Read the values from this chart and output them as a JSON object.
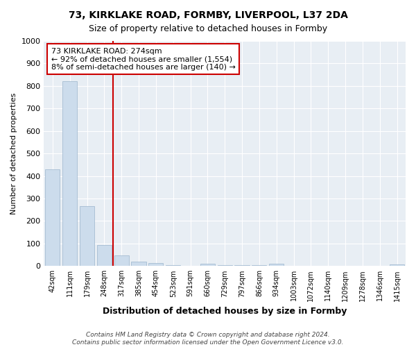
{
  "title": "73, KIRKLAKE ROAD, FORMBY, LIVERPOOL, L37 2DA",
  "subtitle": "Size of property relative to detached houses in Formby",
  "xlabel": "Distribution of detached houses by size in Formby",
  "ylabel": "Number of detached properties",
  "footer_line1": "Contains HM Land Registry data © Crown copyright and database right 2024.",
  "footer_line2": "Contains public sector information licensed under the Open Government Licence v3.0.",
  "categories": [
    "42sqm",
    "111sqm",
    "179sqm",
    "248sqm",
    "317sqm",
    "385sqm",
    "454sqm",
    "523sqm",
    "591sqm",
    "660sqm",
    "729sqm",
    "797sqm",
    "866sqm",
    "934sqm",
    "1003sqm",
    "1072sqm",
    "1140sqm",
    "1209sqm",
    "1278sqm",
    "1346sqm",
    "1415sqm"
  ],
  "values": [
    430,
    820,
    265,
    92,
    48,
    18,
    12,
    5,
    2,
    9,
    3,
    5,
    3,
    10,
    2,
    2,
    2,
    2,
    2,
    2,
    8
  ],
  "bar_color": "#ccdcec",
  "bar_edge_color": "#9ab4cc",
  "highlight_line_color": "#cc0000",
  "annotation_text_line1": "73 KIRKLAKE ROAD: 274sqm",
  "annotation_text_line2": "← 92% of detached houses are smaller (1,554)",
  "annotation_text_line3": "8% of semi-detached houses are larger (140) →",
  "annotation_box_color": "#cc0000",
  "yticks": [
    0,
    100,
    200,
    300,
    400,
    500,
    600,
    700,
    800,
    900,
    1000
  ],
  "ylim": [
    0,
    1000
  ],
  "fig_bg": "#ffffff",
  "ax_bg": "#e8eef4"
}
